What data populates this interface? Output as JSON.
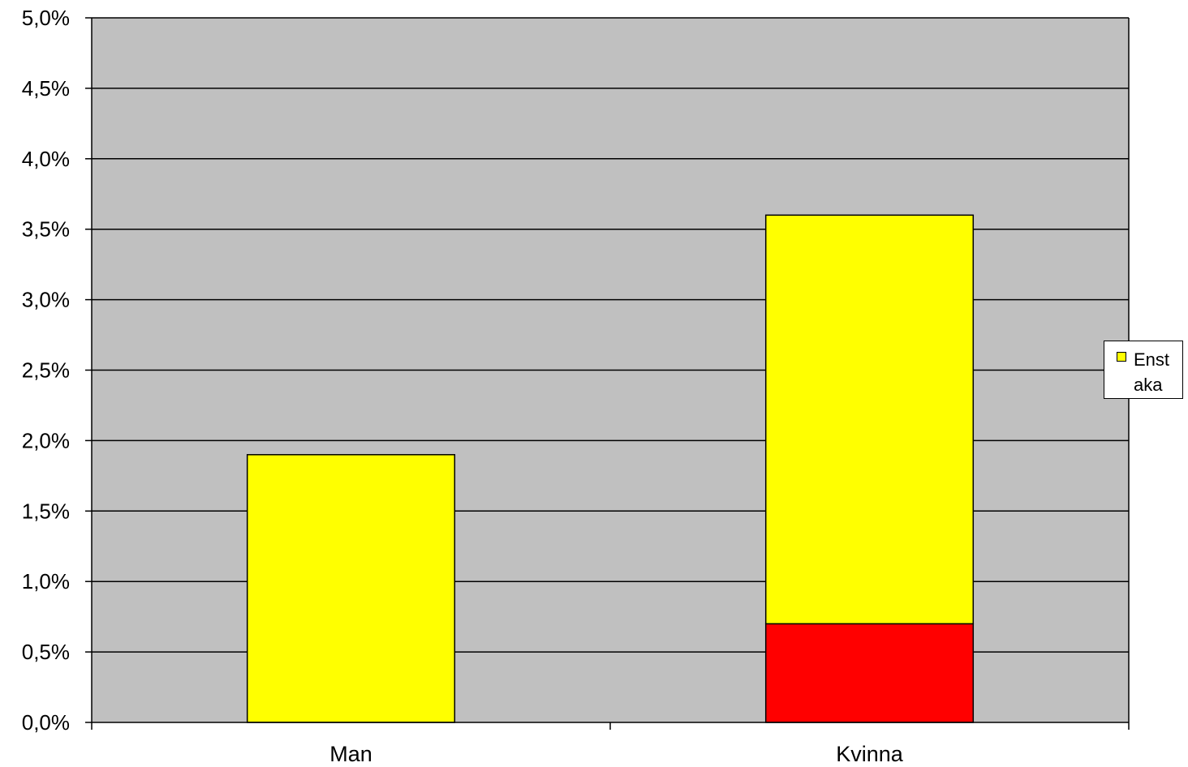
{
  "chart_data": {
    "type": "bar",
    "stacked": true,
    "categories": [
      "Man",
      "Kvinna"
    ],
    "series": [
      {
        "color": "#ff0000",
        "values": [
          0.0,
          0.7
        ]
      },
      {
        "name": "Enstaka",
        "color": "#ffff00",
        "values": [
          1.9,
          2.9
        ]
      }
    ],
    "ylim": [
      0,
      5
    ],
    "yticks": [
      "0,0%",
      "0,5%",
      "1,0%",
      "1,5%",
      "2,0%",
      "2,5%",
      "3,0%",
      "3,5%",
      "4,0%",
      "4,5%",
      "5,0%"
    ],
    "grid": true,
    "plot_background": "#c0c0c0",
    "legend_position": "right",
    "title": "",
    "xlabel": "",
    "ylabel": ""
  },
  "legend": {
    "label": "Enstaka",
    "color": "#ffff00"
  }
}
